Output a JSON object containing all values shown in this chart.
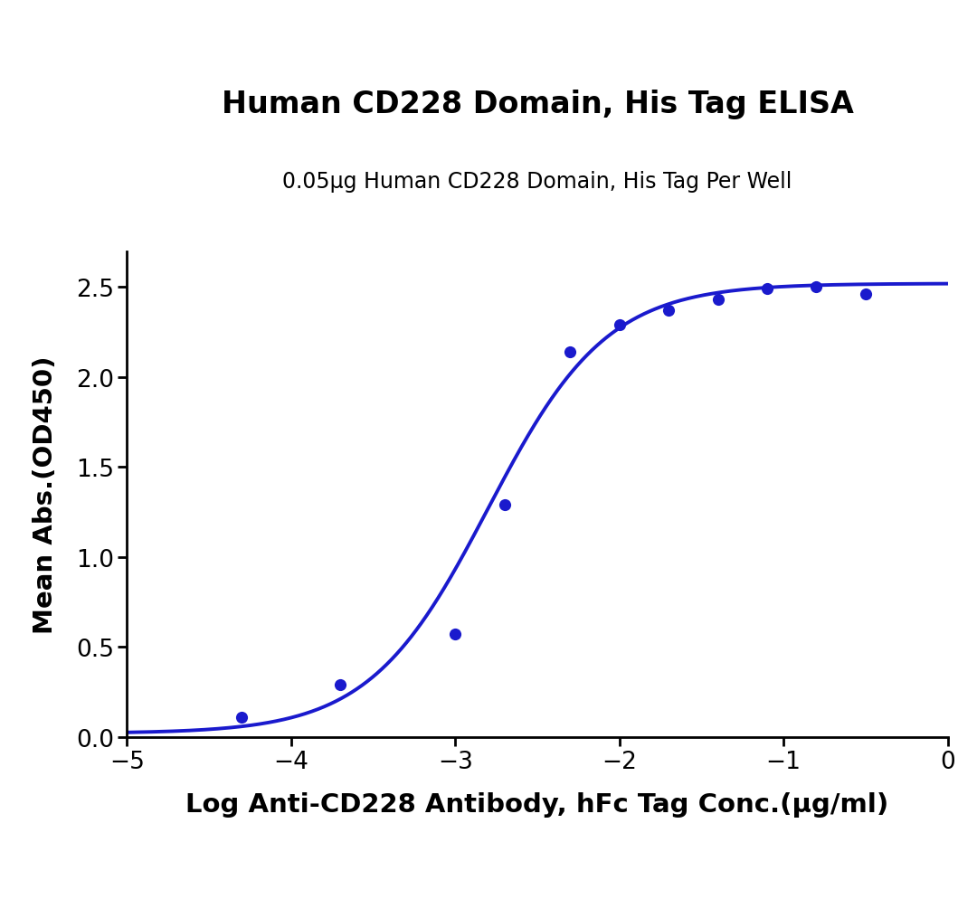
{
  "title": "Human CD228 Domain, His Tag ELISA",
  "subtitle": "0.05μg Human CD228 Domain, His Tag Per Well",
  "xlabel": "Log Anti-CD228 Antibody, hFc Tag Conc.(μg/ml)",
  "ylabel": "Mean Abs.(OD450)",
  "xlim": [
    -5,
    0
  ],
  "ylim": [
    0.0,
    2.7
  ],
  "xticks": [
    -5,
    -4,
    -3,
    -2,
    -1,
    0
  ],
  "yticks": [
    0.0,
    0.5,
    1.0,
    1.5,
    2.0,
    2.5
  ],
  "scatter_x": [
    -4.3,
    -3.7,
    -3.0,
    -2.7,
    -2.3,
    -2.0,
    -1.7,
    -1.4,
    -1.1,
    -0.8,
    -0.5
  ],
  "scatter_y": [
    0.11,
    0.29,
    0.57,
    1.29,
    2.14,
    2.29,
    2.37,
    2.43,
    2.49,
    2.5,
    2.46
  ],
  "curve_color": "#1a1acd",
  "dot_color": "#1a1acd",
  "background_color": "#ffffff",
  "title_fontsize": 24,
  "subtitle_fontsize": 17,
  "axis_label_fontsize": 21,
  "tick_fontsize": 19,
  "line_width": 2.8,
  "dot_size": 90
}
